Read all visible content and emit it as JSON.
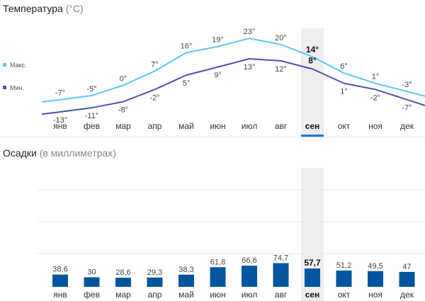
{
  "temperature": {
    "title": "Температура",
    "unit": "(°C)"
  },
  "precipitation": {
    "title": "Осадки",
    "unit": "(в миллиметрах)"
  },
  "selected_index": 8,
  "colors": {
    "max": "#5bc8f5",
    "min": "#4d4fb3",
    "bar": "#00569e",
    "highlight": "#eeeeee",
    "underline": "#1a73e8"
  },
  "chart_data": [
    {
      "type": "line",
      "categories": [
        "янв",
        "фев",
        "мар",
        "апр",
        "май",
        "июн",
        "июл",
        "авг",
        "сен",
        "окт",
        "ноя",
        "дек"
      ],
      "series": [
        {
          "name": "Макс.",
          "values": [
            -7,
            -5,
            0,
            7,
            16,
            19,
            23,
            20,
            14,
            6,
            1,
            -3
          ],
          "labels": [
            "-7°",
            "-5°",
            "0°",
            "7°",
            "16°",
            "19°",
            "23°",
            "20°",
            "14°",
            "6°",
            "1°",
            "-3°"
          ]
        },
        {
          "name": "Мин.",
          "values": [
            -13,
            -11,
            -8,
            -2,
            5,
            9,
            13,
            12,
            8,
            1,
            -2,
            -7
          ],
          "labels": [
            "-13°",
            "-11°",
            "-8°",
            "-2°",
            "5°",
            "9°",
            "13°",
            "12°",
            "8°",
            "1°",
            "-2°",
            "-7°"
          ]
        }
      ],
      "title": "Температура",
      "ylabel": "(°C)",
      "legend": "left"
    },
    {
      "type": "bar",
      "categories": [
        "янв",
        "фев",
        "мар",
        "апр",
        "май",
        "июн",
        "июл",
        "авг",
        "сен",
        "окт",
        "ноя",
        "дек"
      ],
      "values": [
        38.6,
        30,
        28.6,
        29.3,
        38.3,
        61.8,
        66.6,
        74.7,
        57.7,
        51.2,
        49.5,
        47
      ],
      "labels": [
        "38,6",
        "30",
        "28,6",
        "29,3",
        "38,3",
        "61,8",
        "66,6",
        "74,7",
        "57,7",
        "51,2",
        "49,5",
        "47"
      ],
      "title": "Осадки",
      "ylabel": "(в миллиметрах)",
      "grid": true
    }
  ]
}
